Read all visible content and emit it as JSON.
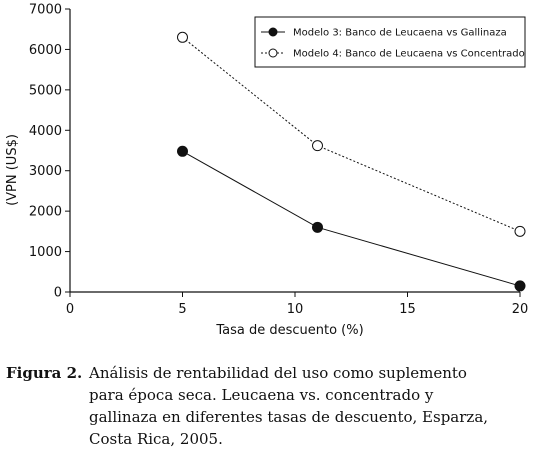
{
  "chart_data": {
    "type": "line",
    "x": [
      5,
      11,
      20
    ],
    "series": [
      {
        "name": "Modelo 3: Banco de Leucaena vs Gallinaza",
        "values": [
          3480,
          1600,
          150
        ],
        "marker": "filled",
        "line": "solid",
        "color": "#111111"
      },
      {
        "name": "Modelo 4: Banco de Leucaena vs Concentrado",
        "values": [
          6300,
          3620,
          1500
        ],
        "marker": "open",
        "line": "dotted",
        "color": "#111111"
      }
    ],
    "xlabel": "Tasa de descuento (%)",
    "ylabel": "(VPN (US$)",
    "xlim": [
      0,
      20
    ],
    "ylim": [
      0,
      7000
    ],
    "xticks": [
      "0",
      "5",
      "10",
      "15",
      "20"
    ],
    "yticks": [
      "0",
      "1000",
      "2000",
      "3000",
      "4000",
      "5000",
      "6000",
      "7000"
    ],
    "grid": false,
    "legend_position": "top-right"
  },
  "caption": {
    "label": "Figura 2.",
    "lines": [
      "Análisis de rentabilidad del uso como suplemento",
      "para época seca. Leucaena vs. concentrado y",
      "gallinaza en diferentes tasas de descuento, Esparza,",
      "Costa Rica, 2005."
    ]
  }
}
